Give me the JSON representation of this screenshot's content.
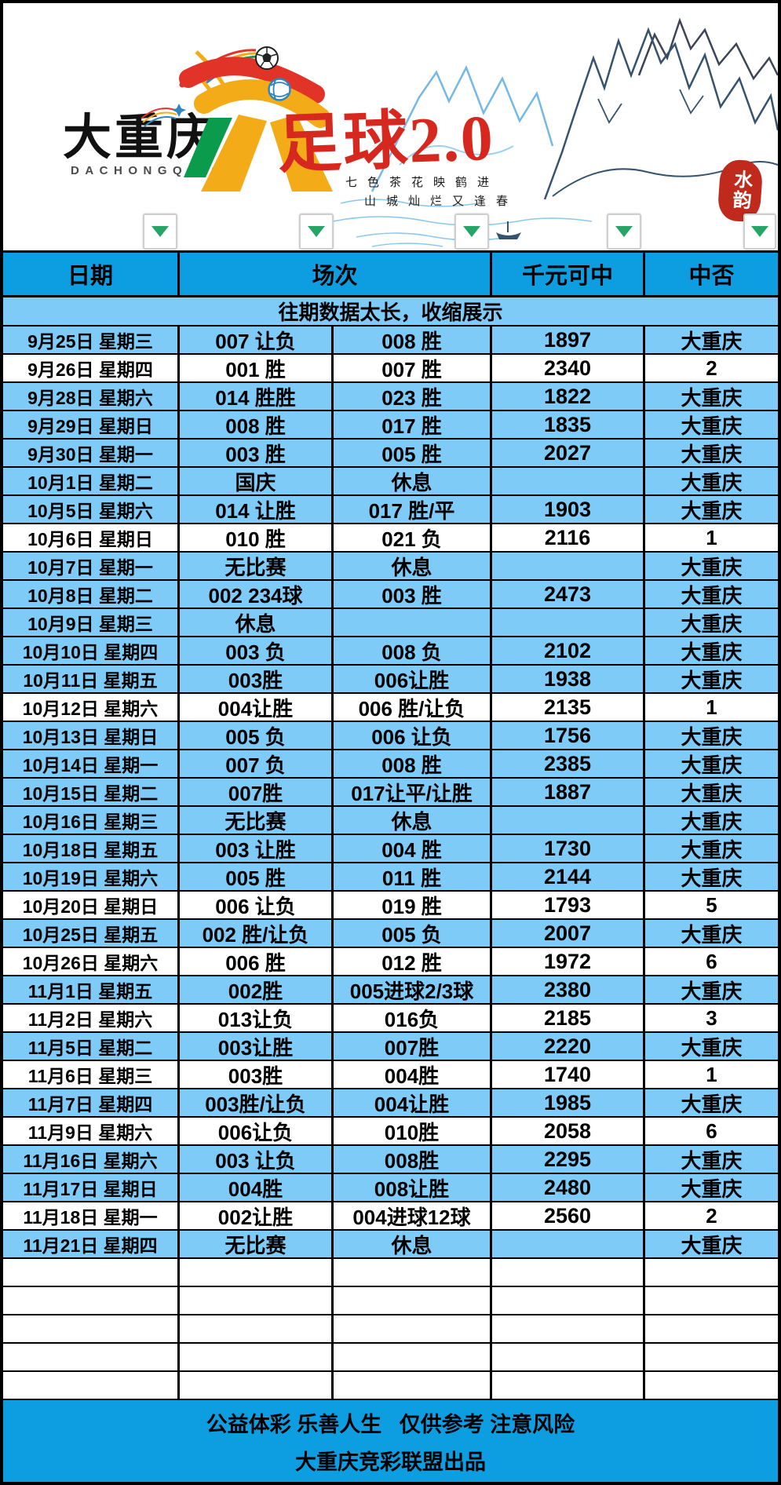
{
  "header_art": {
    "brand": "大重庆",
    "brand_latin": "DACHONGQING",
    "title": "足球2.0",
    "slogan_line1": "七色茶花映鹤进",
    "slogan_line2": "山城灿烂又逢春",
    "seal_text": "水韵"
  },
  "icons": {
    "filter_dropdown": "chevron-down-triangle",
    "football": "soccer-ball",
    "globe_badge": "blue-globe",
    "rainbow_trail": "rainbow-arcs"
  },
  "table": {
    "columns": [
      "日期",
      "场次",
      "千元可中",
      "中否"
    ],
    "notice": "往期数据太长，收缩展示",
    "empty_row_count": 5,
    "rows": [
      {
        "date": "9月25日 星期三",
        "m1": "007 让负",
        "m2": "008 胜",
        "amount": "1897",
        "result": "大重庆",
        "hit": true
      },
      {
        "date": "9月26日 星期四",
        "m1": "001 胜",
        "m2": "007 胜",
        "amount": "2340",
        "result": "2",
        "hit": false
      },
      {
        "date": "9月28日 星期六",
        "m1": "014 胜胜",
        "m2": "023 胜",
        "amount": "1822",
        "result": "大重庆",
        "hit": true
      },
      {
        "date": "9月29日 星期日",
        "m1": "008 胜",
        "m2": "017 胜",
        "amount": "1835",
        "result": "大重庆",
        "hit": true
      },
      {
        "date": "9月30日 星期一",
        "m1": "003 胜",
        "m2": "005 胜",
        "amount": "2027",
        "result": "大重庆",
        "hit": true
      },
      {
        "date": "10月1日 星期二",
        "m1": "国庆",
        "m2": "休息",
        "amount": "",
        "result": "大重庆",
        "hit": true
      },
      {
        "date": "10月5日 星期六",
        "m1": "014 让胜",
        "m2": "017 胜/平",
        "amount": "1903",
        "result": "大重庆",
        "hit": true
      },
      {
        "date": "10月6日 星期日",
        "m1": "010 胜",
        "m2": "021 负",
        "amount": "2116",
        "result": "1",
        "hit": false
      },
      {
        "date": "10月7日 星期一",
        "m1": "无比赛",
        "m2": "休息",
        "amount": "",
        "result": "大重庆",
        "hit": true
      },
      {
        "date": "10月8日 星期二",
        "m1": "002 234球",
        "m2": "003 胜",
        "amount": "2473",
        "result": "大重庆",
        "hit": true
      },
      {
        "date": "10月9日 星期三",
        "m1": "休息",
        "m2": "",
        "amount": "",
        "result": "大重庆",
        "hit": true
      },
      {
        "date": "10月10日 星期四",
        "m1": "003 负",
        "m2": "008 负",
        "amount": "2102",
        "result": "大重庆",
        "hit": true
      },
      {
        "date": "10月11日 星期五",
        "m1": "003胜",
        "m2": "006让胜",
        "amount": "1938",
        "result": "大重庆",
        "hit": true
      },
      {
        "date": "10月12日 星期六",
        "m1": "004让胜",
        "m2": "006 胜/让负",
        "amount": "2135",
        "result": "1",
        "hit": false
      },
      {
        "date": "10月13日 星期日",
        "m1": "005 负",
        "m2": "006 让负",
        "amount": "1756",
        "result": "大重庆",
        "hit": true
      },
      {
        "date": "10月14日 星期一",
        "m1": "007 负",
        "m2": "008 胜",
        "amount": "2385",
        "result": "大重庆",
        "hit": true
      },
      {
        "date": "10月15日 星期二",
        "m1": "007胜",
        "m2": "017让平/让胜",
        "amount": "1887",
        "result": "大重庆",
        "hit": true
      },
      {
        "date": "10月16日 星期三",
        "m1": "无比赛",
        "m2": "休息",
        "amount": "",
        "result": "大重庆",
        "hit": true
      },
      {
        "date": "10月18日 星期五",
        "m1": "003 让胜",
        "m2": "004 胜",
        "amount": "1730",
        "result": "大重庆",
        "hit": true
      },
      {
        "date": "10月19日 星期六",
        "m1": "005 胜",
        "m2": "011 胜",
        "amount": "2144",
        "result": "大重庆",
        "hit": true
      },
      {
        "date": "10月20日 星期日",
        "m1": "006 让负",
        "m2": "019 胜",
        "amount": "1793",
        "result": "5",
        "hit": false
      },
      {
        "date": "10月25日 星期五",
        "m1": "002 胜/让负",
        "m2": "005 负",
        "amount": "2007",
        "result": "大重庆",
        "hit": true
      },
      {
        "date": "10月26日 星期六",
        "m1": "006 胜",
        "m2": "012 胜",
        "amount": "1972",
        "result": "6",
        "hit": false
      },
      {
        "date": "11月1日 星期五",
        "m1": "002胜",
        "m2": "005进球2/3球",
        "amount": "2380",
        "result": "大重庆",
        "hit": true
      },
      {
        "date": "11月2日 星期六",
        "m1": "013让负",
        "m2": "016负",
        "amount": "2185",
        "result": "3",
        "hit": false
      },
      {
        "date": "11月5日 星期二",
        "m1": "003让胜",
        "m2": "007胜",
        "amount": "2220",
        "result": "大重庆",
        "hit": true
      },
      {
        "date": "11月6日 星期三",
        "m1": "003胜",
        "m2": "004胜",
        "amount": "1740",
        "result": "1",
        "hit": false
      },
      {
        "date": "11月7日 星期四",
        "m1": "003胜/让负",
        "m2": "004让胜",
        "amount": "1985",
        "result": "大重庆",
        "hit": true
      },
      {
        "date": "11月9日 星期六",
        "m1": "006让负",
        "m2": "010胜",
        "amount": "2058",
        "result": "6",
        "hit": false
      },
      {
        "date": "11月16日 星期六",
        "m1": "003 让负",
        "m2": "008胜",
        "amount": "2295",
        "result": "大重庆",
        "hit": true
      },
      {
        "date": "11月17日 星期日",
        "m1": "004胜",
        "m2": "008让胜",
        "amount": "2480",
        "result": "大重庆",
        "hit": true
      },
      {
        "date": "11月18日 星期一",
        "m1": "002让胜",
        "m2": "004进球12球",
        "amount": "2560",
        "result": "2",
        "hit": false
      },
      {
        "date": "11月21日 星期四",
        "m1": "无比赛",
        "m2": "休息",
        "amount": "",
        "result": "大重庆",
        "hit": true
      }
    ]
  },
  "footer": {
    "line1": "公益体彩 乐善人生   仅供参考 注意风险",
    "line2": "大重庆竞彩联盟出品"
  },
  "colors": {
    "header_blue": "#0d9ee1",
    "row_blue": "#7ecbf8",
    "row_white": "#ffffff",
    "arrow_green": "#27a567",
    "title_red": "#d6281e",
    "logo_red": "#e23329",
    "logo_yellow": "#f3ac17",
    "logo_green": "#0a9b4c",
    "globe_blue": "#2e86c1",
    "seal_red": "#bf2a1c",
    "ink_blue": "#35536e",
    "light_mountain": "#74b9e6",
    "ripple_blue": "#8cc8ee"
  }
}
